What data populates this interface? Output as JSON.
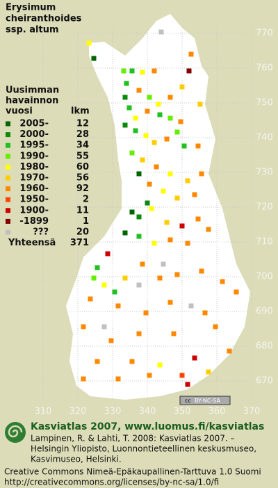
{
  "map": {
    "title_lines": [
      "Erysimum",
      "cheiranthoides",
      "ssp. altum"
    ],
    "legend": {
      "header_lines": [
        "Uusimman",
        "havainnon",
        "vuosi"
      ],
      "count_header": "lkm",
      "rows": [
        {
          "label": "2005-",
          "count": 12,
          "color": "#006400"
        },
        {
          "label": "2000-",
          "count": 28,
          "color": "#0a8a0a"
        },
        {
          "label": "1995-",
          "count": 34,
          "color": "#20c020"
        },
        {
          "label": "1990-",
          "count": 55,
          "color": "#66ee00"
        },
        {
          "label": "1980-",
          "count": 60,
          "color": "#ffff00"
        },
        {
          "label": "1970-",
          "count": 56,
          "color": "#ffcc00"
        },
        {
          "label": "1960-",
          "count": 92,
          "color": "#ff8800"
        },
        {
          "label": "1950-",
          "count": 2,
          "color": "#ff4400"
        },
        {
          "label": "1900-",
          "count": 11,
          "color": "#cc0000"
        },
        {
          "label": "-1899",
          "count": 1,
          "color": "#800000"
        },
        {
          "label": "???",
          "count": 20,
          "color": "#c0c0c0"
        }
      ],
      "total_label": "Yhteensä",
      "total": 371
    },
    "y_grid_labels": [
      770,
      760,
      750,
      740,
      730,
      720,
      710,
      700,
      690,
      680,
      670
    ],
    "x_grid_labels": [
      310,
      320,
      330,
      340,
      350,
      360,
      370
    ],
    "cc_badge": [
      "cc",
      "BY-NC-SA"
    ],
    "footer": {
      "heading": "Kasviatlas 2007, www.luomus.fi/kasviatlas",
      "citation": [
        "Lampinen, R. & Lahti, T. 2008: Kasviatlas 2007. –",
        "Helsingin Yliopisto, Luonnontieteellinen keskusmuseo,",
        "Kasvimuseo, Helsinki."
      ],
      "license": [
        "Creative Commons Nimeä-Epäkaupallinen-Tarttuva 1.0 Suomi",
        "http://creativecommons.org/licenses/by-nc-sa/1.0/fi"
      ]
    }
  }
}
